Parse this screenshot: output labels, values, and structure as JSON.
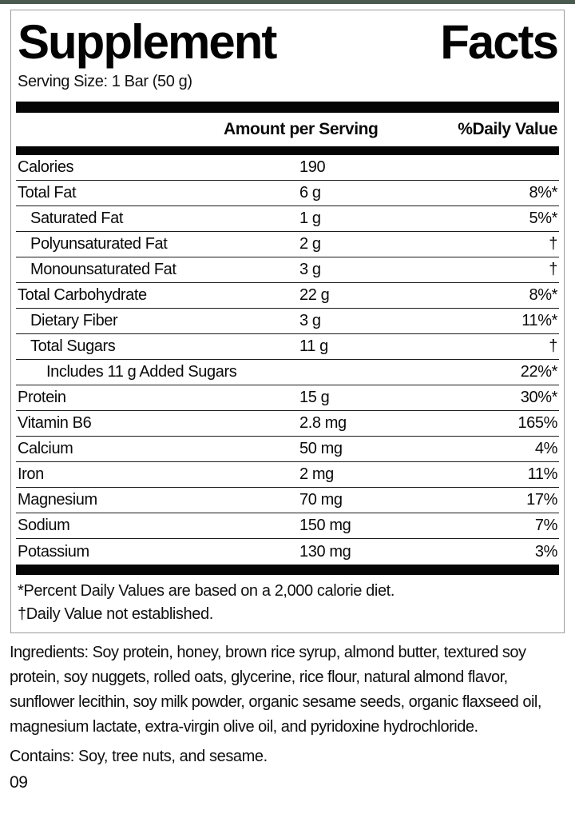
{
  "page": {
    "accent_color": "#4a5a4e",
    "page_code": "09"
  },
  "label": {
    "title_left": "Supplement",
    "title_right": "Facts",
    "serving_size": "Serving Size: 1 Bar (50 g)",
    "columns": {
      "amount": "Amount per Serving",
      "daily_value": "%Daily Value"
    },
    "rows": [
      {
        "label": "Calories",
        "indent": 0,
        "amount": "190",
        "dv": ""
      },
      {
        "label": "Total Fat",
        "indent": 0,
        "amount": "6 g",
        "dv": "8%*"
      },
      {
        "label": "Saturated Fat",
        "indent": 1,
        "amount": "1 g",
        "dv": "5%*"
      },
      {
        "label": "Polyunsaturated Fat",
        "indent": 1,
        "amount": "2 g",
        "dv": "†"
      },
      {
        "label": "Monounsaturated Fat",
        "indent": 1,
        "amount": "3 g",
        "dv": "†"
      },
      {
        "label": "Total Carbohydrate",
        "indent": 0,
        "amount": "22 g",
        "dv": "8%*"
      },
      {
        "label": "Dietary Fiber",
        "indent": 1,
        "amount": "3 g",
        "dv": "11%*"
      },
      {
        "label": "Total Sugars",
        "indent": 1,
        "amount": "11 g",
        "dv": "†"
      },
      {
        "label": "Includes 11 g Added Sugars",
        "indent": 2,
        "amount": "",
        "dv": "22%*"
      },
      {
        "label": "Protein",
        "indent": 0,
        "amount": "15 g",
        "dv": "30%*"
      },
      {
        "label": "Vitamin B6",
        "indent": 0,
        "amount": "2.8 mg",
        "dv": "165%"
      },
      {
        "label": "Calcium",
        "indent": 0,
        "amount": "50 mg",
        "dv": "4%"
      },
      {
        "label": "Iron",
        "indent": 0,
        "amount": "2 mg",
        "dv": "11%"
      },
      {
        "label": "Magnesium",
        "indent": 0,
        "amount": "70 mg",
        "dv": "17%"
      },
      {
        "label": "Sodium",
        "indent": 0,
        "amount": "150 mg",
        "dv": "7%"
      },
      {
        "label": "Potassium",
        "indent": 0,
        "amount": "130 mg",
        "dv": "3%"
      }
    ],
    "footnotes": [
      "*Percent Daily Values are based on a 2,000 calorie diet.",
      "†Daily Value not established."
    ]
  },
  "ingredients": "Ingredients: Soy protein, honey, brown rice syrup, almond butter, textured soy protein, soy nuggets, rolled oats, glycerine, rice flour, natural almond flavor, sunflower lecithin, soy milk powder, organic sesame seeds, organic flaxseed oil, magnesium lactate, extra-virgin olive oil, and pyridoxine hydrochloride.",
  "contains": "Contains: Soy, tree nuts, and sesame."
}
